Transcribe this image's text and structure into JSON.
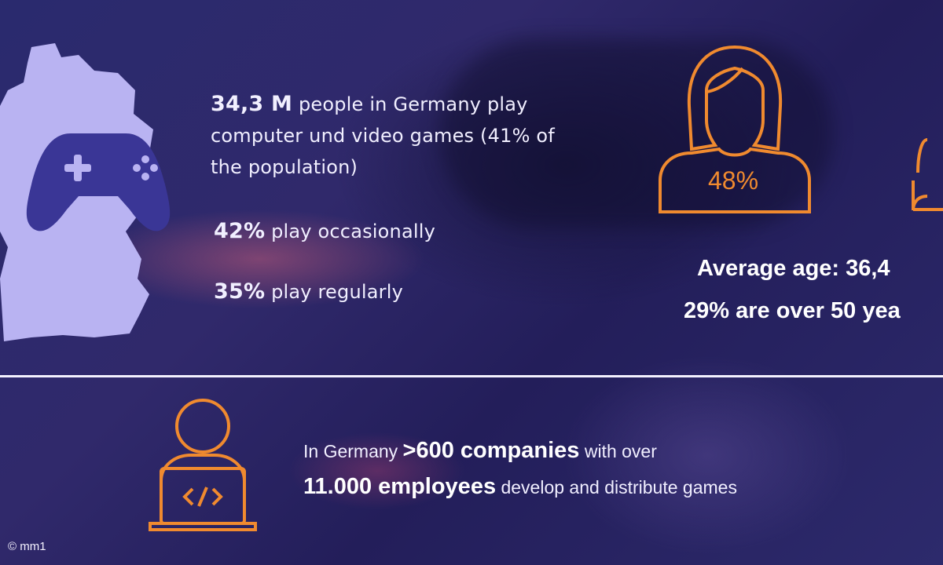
{
  "gamers": {
    "count_value": "34,3 M",
    "count_text": "people in Germany play computer und video games (41% of the population)",
    "occasional_value": "42%",
    "occasional_text": "play occasionally",
    "regular_value": "35%",
    "regular_text": "play regularly"
  },
  "demographics": {
    "female_percent": "48%",
    "average_age": "Average age: 36,4",
    "over_50": "29% are over 50 yea"
  },
  "industry": {
    "line1_prefix": "In Germany",
    "companies_value": ">600 companies",
    "line1_suffix": "with over",
    "employees_value": "11.000 employees",
    "line2_suffix": "develop and distribute games"
  },
  "footer": {
    "copyright": "© mm1"
  },
  "colors": {
    "accent_orange": "#f08a2f",
    "map_fill": "#b9b3f2",
    "controller": "#3a3696",
    "background": "#2b2a6c"
  }
}
